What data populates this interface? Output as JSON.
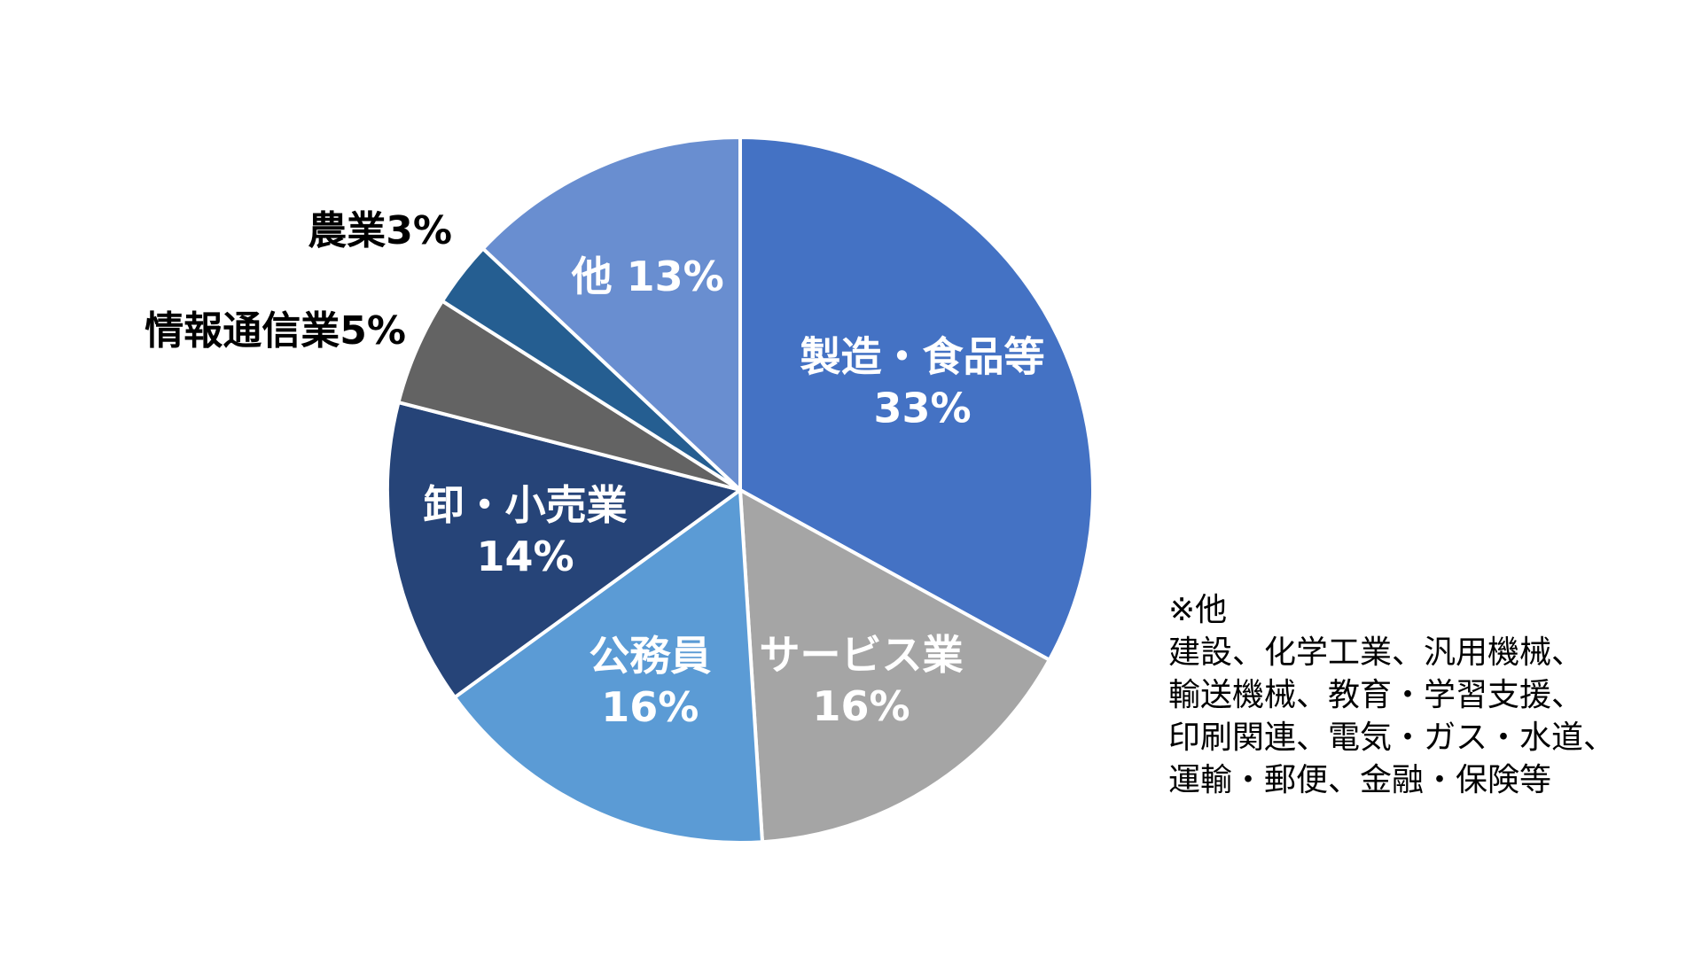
{
  "chart_data": {
    "type": "pie",
    "slices": [
      {
        "label": "製造・食品等",
        "lines": [
          "製造・食品等",
          "33%"
        ],
        "value": 33,
        "color": "#4472C4",
        "label_style": "inside"
      },
      {
        "label": "サービス業",
        "lines": [
          "サービス業",
          "16%"
        ],
        "value": 16,
        "color": "#A5A5A5",
        "label_style": "inside"
      },
      {
        "label": "公務員",
        "lines": [
          "公務員",
          "16%"
        ],
        "value": 16,
        "color": "#5B9BD5",
        "label_style": "inside"
      },
      {
        "label": "卸・小売業",
        "lines": [
          "卸・小売業",
          "14%"
        ],
        "value": 14,
        "color": "#264478",
        "label_style": "inside"
      },
      {
        "label": "情報通信業",
        "lines": [
          "情報通信業5%"
        ],
        "value": 5,
        "color": "#636363",
        "label_style": "outside"
      },
      {
        "label": "農業",
        "lines": [
          "農業3%"
        ],
        "value": 3,
        "color": "#255E91",
        "label_style": "outside"
      },
      {
        "label": "他",
        "lines": [
          "他 13%"
        ],
        "value": 13,
        "color": "#698ED0",
        "label_style": "inside"
      }
    ],
    "start_angle_deg": 0,
    "direction": "clockwise"
  },
  "note": {
    "title": "※他",
    "lines": [
      "建設、化学工業、汎用機械、",
      "輸送機械、教育・学習支援、",
      "印刷関連、電気・ガス・水道、",
      "運輸・郵便、金融・保険等"
    ]
  }
}
